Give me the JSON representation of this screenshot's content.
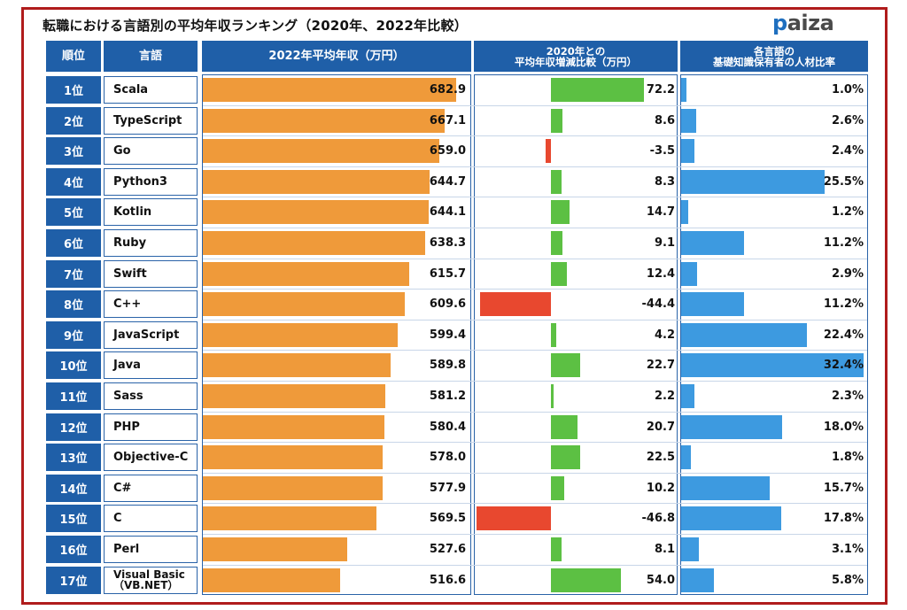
{
  "title": "転職における言語別の平均年収ランキング（2020年、2022年比較）",
  "logo": {
    "prefix": "p",
    "rest": "aiza"
  },
  "headers": {
    "rank": "順位",
    "language": "言語",
    "salary": "2022年平均年収（万円）",
    "change_line1": "2020年との",
    "change_line2": "平均年収増減比較（万円）",
    "ratio_line1": "各言語の",
    "ratio_line2": "基礎知識保有者の人材比率"
  },
  "colors": {
    "salary_bar": "#ef9a3a",
    "increase_bar": "#5cc043",
    "decrease_bar": "#e8482f",
    "ratio_bar": "#3d9ae0",
    "header_bg": "#1f5fa8",
    "frame": "#b01c1c"
  },
  "chart_data": {
    "type": "table",
    "columns": [
      "順位",
      "言語",
      "2022年平均年収（万円）",
      "2020年との平均年収増減比較（万円）",
      "各言語の基礎知識保有者の人材比率"
    ],
    "rows": [
      {
        "rank": "1位",
        "language": "Scala",
        "salary": 682.9,
        "salary_label": "682.9",
        "change": 72.2,
        "change_label": "72.2",
        "ratio": 1.0,
        "ratio_label": "1.0%"
      },
      {
        "rank": "2位",
        "language": "TypeScript",
        "salary": 667.1,
        "salary_label": "667.1",
        "change": 8.6,
        "change_label": "8.6",
        "ratio": 2.6,
        "ratio_label": "2.6%"
      },
      {
        "rank": "3位",
        "language": "Go",
        "salary": 659.0,
        "salary_label": "659.0",
        "change": -3.5,
        "change_label": "-3.5",
        "ratio": 2.4,
        "ratio_label": "2.4%"
      },
      {
        "rank": "4位",
        "language": "Python3",
        "salary": 644.7,
        "salary_label": "644.7",
        "change": 8.3,
        "change_label": "8.3",
        "ratio": 25.5,
        "ratio_label": "25.5%"
      },
      {
        "rank": "5位",
        "language": "Kotlin",
        "salary": 644.1,
        "salary_label": "644.1",
        "change": 14.7,
        "change_label": "14.7",
        "ratio": 1.2,
        "ratio_label": "1.2%"
      },
      {
        "rank": "6位",
        "language": "Ruby",
        "salary": 638.3,
        "salary_label": "638.3",
        "change": 9.1,
        "change_label": "9.1",
        "ratio": 11.2,
        "ratio_label": "11.2%"
      },
      {
        "rank": "7位",
        "language": "Swift",
        "salary": 615.7,
        "salary_label": "615.7",
        "change": 12.4,
        "change_label": "12.4",
        "ratio": 2.9,
        "ratio_label": "2.9%"
      },
      {
        "rank": "8位",
        "language": "C++",
        "salary": 609.6,
        "salary_label": "609.6",
        "change": -44.4,
        "change_label": "-44.4",
        "ratio": 11.2,
        "ratio_label": "11.2%"
      },
      {
        "rank": "9位",
        "language": "JavaScript",
        "salary": 599.4,
        "salary_label": "599.4",
        "change": 4.2,
        "change_label": "4.2",
        "ratio": 22.4,
        "ratio_label": "22.4%"
      },
      {
        "rank": "10位",
        "language": "Java",
        "salary": 589.8,
        "salary_label": "589.8",
        "change": 22.7,
        "change_label": "22.7",
        "ratio": 32.4,
        "ratio_label": "32.4%"
      },
      {
        "rank": "11位",
        "language": "Sass",
        "salary": 581.2,
        "salary_label": "581.2",
        "change": 2.2,
        "change_label": "2.2",
        "ratio": 2.3,
        "ratio_label": "2.3%"
      },
      {
        "rank": "12位",
        "language": "PHP",
        "salary": 580.4,
        "salary_label": "580.4",
        "change": 20.7,
        "change_label": "20.7",
        "ratio": 18.0,
        "ratio_label": "18.0%"
      },
      {
        "rank": "13位",
        "language": "Objective-C",
        "salary": 578.0,
        "salary_label": "578.0",
        "change": 22.5,
        "change_label": "22.5",
        "ratio": 1.8,
        "ratio_label": "1.8%"
      },
      {
        "rank": "14位",
        "language": "C#",
        "salary": 577.9,
        "salary_label": "577.9",
        "change": 10.2,
        "change_label": "10.2",
        "ratio": 15.7,
        "ratio_label": "15.7%"
      },
      {
        "rank": "15位",
        "language": "C",
        "salary": 569.5,
        "salary_label": "569.5",
        "change": -46.8,
        "change_label": "-46.8",
        "ratio": 17.8,
        "ratio_label": "17.8%"
      },
      {
        "rank": "16位",
        "language": "Perl",
        "salary": 527.6,
        "salary_label": "527.6",
        "change": 8.1,
        "change_label": "8.1",
        "ratio": 3.1,
        "ratio_label": "3.1%"
      },
      {
        "rank": "17位",
        "language": "Visual Basic\n（VB.NET）",
        "salary": 516.6,
        "salary_label": "516.6",
        "change": 54.0,
        "change_label": "54.0",
        "ratio": 5.8,
        "ratio_label": "5.8%"
      }
    ]
  }
}
